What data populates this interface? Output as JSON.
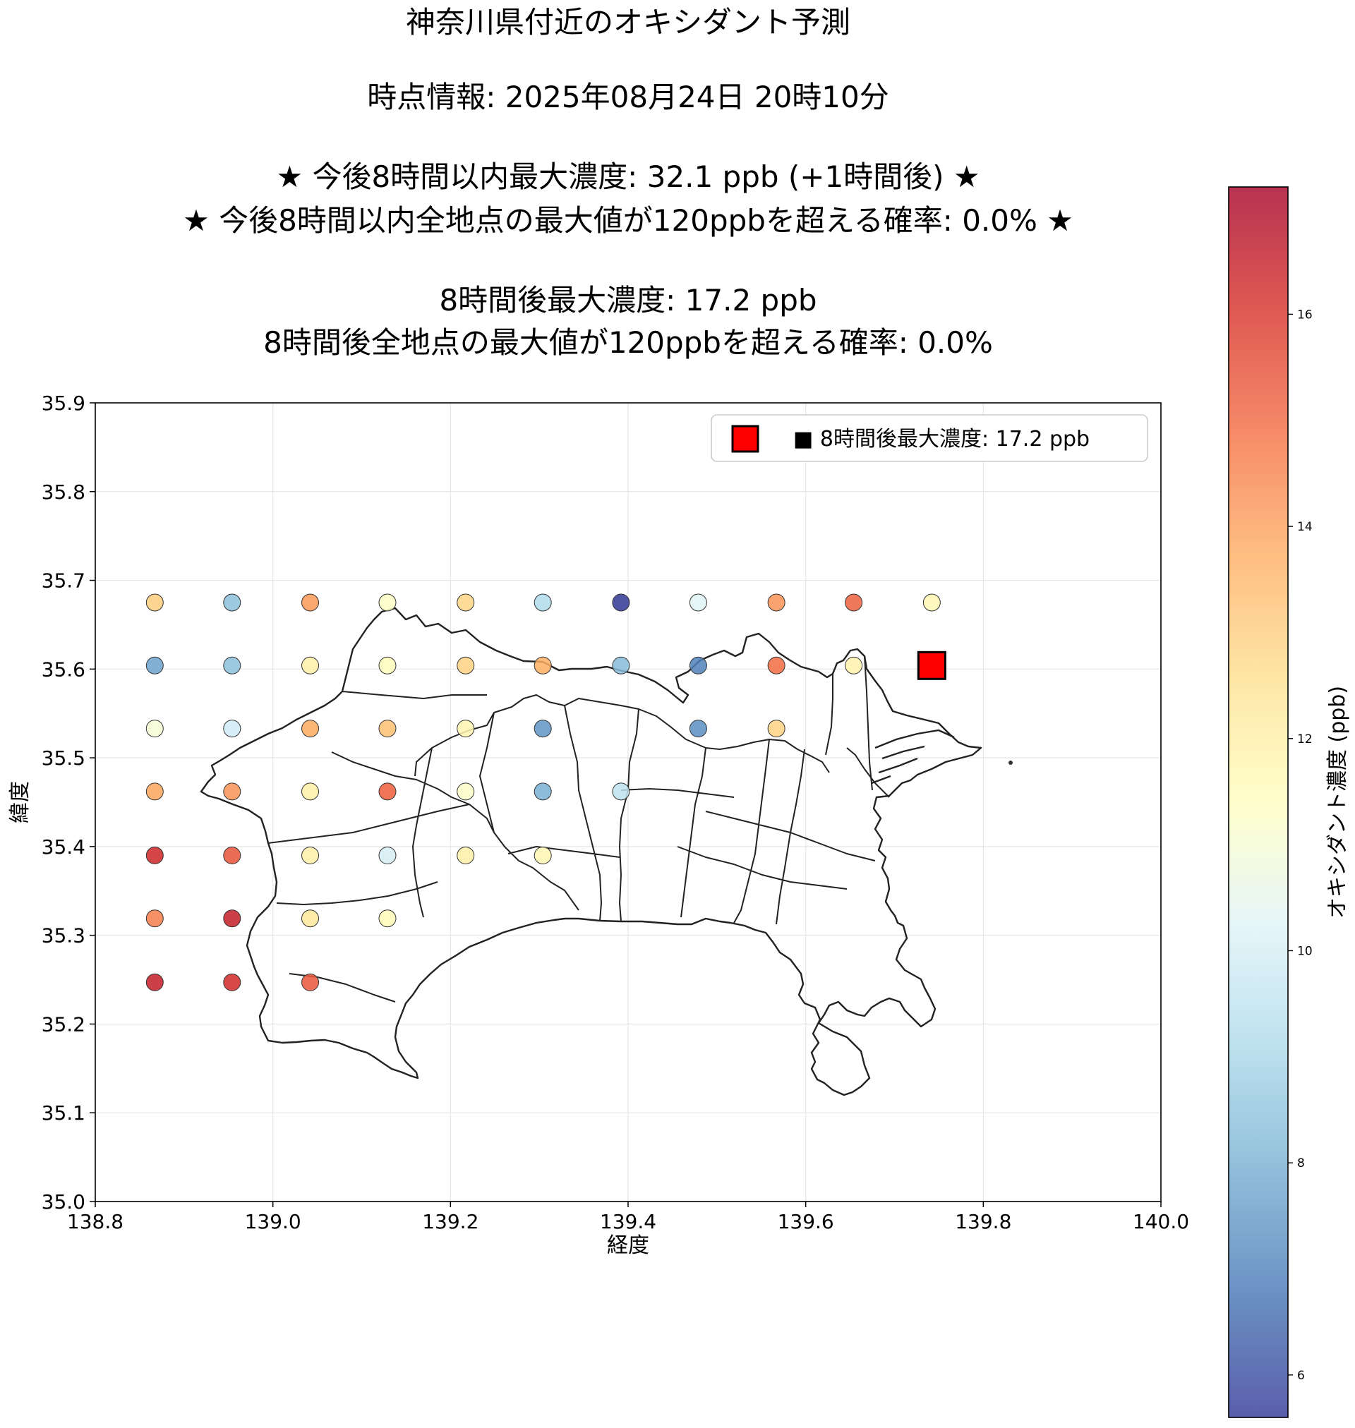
{
  "chart_data": {
    "type": "scatter",
    "title_lines": [
      "神奈川県付近のオキシダント予測",
      "時点情報: 2025年08月24日 20時10分",
      "★ 今後8時間以内最大濃度: 32.1 ppb (+1時間後) ★",
      "★ 今後8時間以内全地点の最大値が120ppbを超える確率: 0.0% ★",
      "8時間後最大濃度: 17.2 ppb",
      "8時間後全地点の最大値が120ppbを超える確率: 0.0%"
    ],
    "xlabel": "経度",
    "ylabel": "緯度",
    "xlim": [
      138.8,
      140.0
    ],
    "ylim": [
      35.0,
      35.9
    ],
    "xticks": [
      "138.8",
      "139.0",
      "139.2",
      "139.4",
      "139.6",
      "139.8",
      "140.0"
    ],
    "yticks": [
      "35.0",
      "35.1",
      "35.2",
      "35.3",
      "35.4",
      "35.5",
      "35.6",
      "35.7",
      "35.8",
      "35.9"
    ],
    "grid": true,
    "legend": {
      "position": "top-right",
      "label": "■ 8時間後最大濃度: 17.2 ppb"
    },
    "colorbar": {
      "label": "オキシダント濃度 (ppb)",
      "min": 5.6,
      "max": 17.2,
      "ticks": [
        "6",
        "8",
        "10",
        "12",
        "14",
        "16"
      ],
      "colormap": "RdYlBu_r"
    },
    "points": [
      {
        "lon": 138.867,
        "lat": 35.675,
        "value": 13.0
      },
      {
        "lon": 138.954,
        "lat": 35.675,
        "value": 8.4
      },
      {
        "lon": 139.042,
        "lat": 35.675,
        "value": 14.1
      },
      {
        "lon": 139.129,
        "lat": 35.675,
        "value": 11.3
      },
      {
        "lon": 139.217,
        "lat": 35.675,
        "value": 12.8
      },
      {
        "lon": 139.304,
        "lat": 35.675,
        "value": 9.2
      },
      {
        "lon": 139.392,
        "lat": 35.675,
        "value": 5.6
      },
      {
        "lon": 139.479,
        "lat": 35.675,
        "value": 10.3
      },
      {
        "lon": 139.567,
        "lat": 35.675,
        "value": 14.2
      },
      {
        "lon": 139.654,
        "lat": 35.675,
        "value": 15.1
      },
      {
        "lon": 139.742,
        "lat": 35.675,
        "value": 11.7
      },
      {
        "lon": 138.867,
        "lat": 35.604,
        "value": 7.7
      },
      {
        "lon": 138.954,
        "lat": 35.604,
        "value": 8.4
      },
      {
        "lon": 139.042,
        "lat": 35.604,
        "value": 12.0
      },
      {
        "lon": 139.129,
        "lat": 35.604,
        "value": 11.5
      },
      {
        "lon": 139.217,
        "lat": 35.604,
        "value": 12.9
      },
      {
        "lon": 139.304,
        "lat": 35.604,
        "value": 13.7
      },
      {
        "lon": 139.392,
        "lat": 35.604,
        "value": 8.3
      },
      {
        "lon": 139.479,
        "lat": 35.604,
        "value": 7.0
      },
      {
        "lon": 139.567,
        "lat": 35.604,
        "value": 14.9
      },
      {
        "lon": 139.654,
        "lat": 35.604,
        "value": 11.9
      },
      {
        "lon": 139.742,
        "lat": 35.604,
        "value": 17.2,
        "marker": "max"
      },
      {
        "lon": 138.867,
        "lat": 35.533,
        "value": 11.0
      },
      {
        "lon": 138.954,
        "lat": 35.533,
        "value": 9.9
      },
      {
        "lon": 139.042,
        "lat": 35.533,
        "value": 13.8
      },
      {
        "lon": 139.129,
        "lat": 35.533,
        "value": 13.3
      },
      {
        "lon": 139.217,
        "lat": 35.533,
        "value": 11.8
      },
      {
        "lon": 139.304,
        "lat": 35.533,
        "value": 7.4
      },
      {
        "lon": 139.479,
        "lat": 35.533,
        "value": 7.3
      },
      {
        "lon": 139.567,
        "lat": 35.533,
        "value": 12.9
      },
      {
        "lon": 138.867,
        "lat": 35.462,
        "value": 13.9
      },
      {
        "lon": 138.954,
        "lat": 35.462,
        "value": 14.2
      },
      {
        "lon": 139.042,
        "lat": 35.462,
        "value": 12.0
      },
      {
        "lon": 139.129,
        "lat": 35.462,
        "value": 15.2
      },
      {
        "lon": 139.217,
        "lat": 35.462,
        "value": 11.2
      },
      {
        "lon": 139.304,
        "lat": 35.462,
        "value": 8.0
      },
      {
        "lon": 139.392,
        "lat": 35.462,
        "value": 9.5
      },
      {
        "lon": 138.867,
        "lat": 35.39,
        "value": 16.3
      },
      {
        "lon": 138.954,
        "lat": 35.39,
        "value": 15.4
      },
      {
        "lon": 139.042,
        "lat": 35.39,
        "value": 12.0
      },
      {
        "lon": 139.129,
        "lat": 35.39,
        "value": 10.0
      },
      {
        "lon": 139.217,
        "lat": 35.39,
        "value": 12.0
      },
      {
        "lon": 139.304,
        "lat": 35.39,
        "value": 11.7
      },
      {
        "lon": 138.867,
        "lat": 35.319,
        "value": 14.6
      },
      {
        "lon": 138.954,
        "lat": 35.319,
        "value": 16.5
      },
      {
        "lon": 139.042,
        "lat": 35.319,
        "value": 12.3
      },
      {
        "lon": 139.129,
        "lat": 35.319,
        "value": 11.6
      },
      {
        "lon": 138.867,
        "lat": 35.247,
        "value": 16.5
      },
      {
        "lon": 138.954,
        "lat": 35.247,
        "value": 16.2
      },
      {
        "lon": 139.042,
        "lat": 35.247,
        "value": 15.3
      }
    ]
  }
}
